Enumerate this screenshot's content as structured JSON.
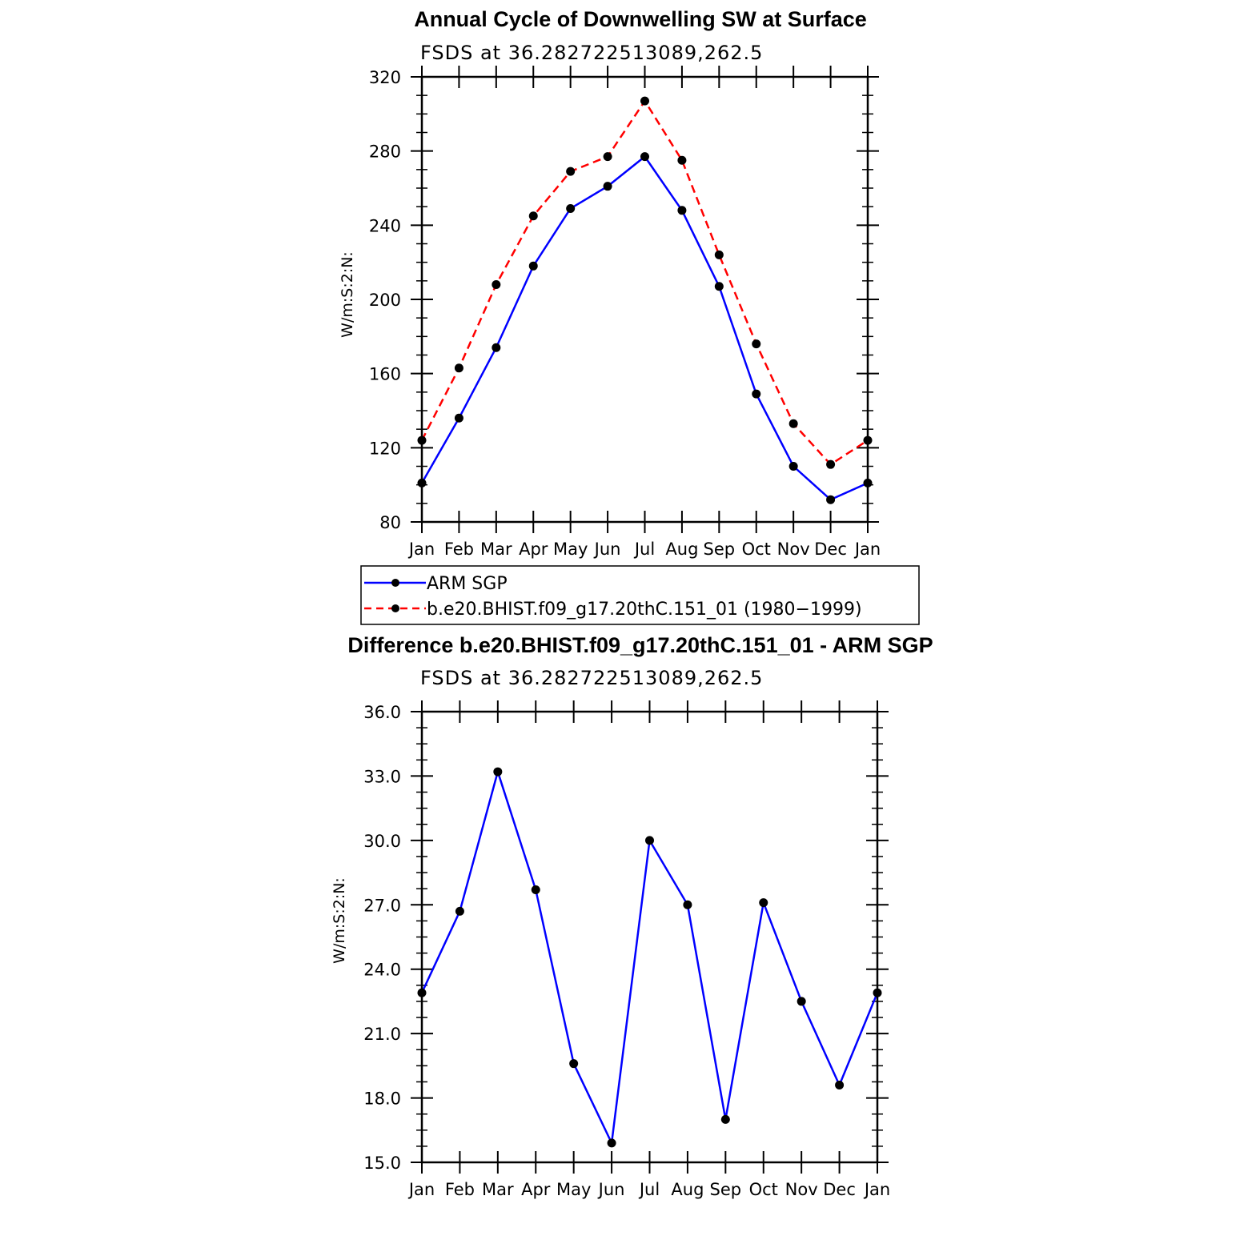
{
  "chart_data": [
    {
      "type": "line",
      "title": "Annual Cycle of Downwelling SW at Surface",
      "subtitle": "FSDS at 36.282722513089,262.5",
      "ylabel": "W/m:S:2:N:",
      "categories": [
        "Jan",
        "Feb",
        "Mar",
        "Apr",
        "May",
        "Jun",
        "Jul",
        "Aug",
        "Sep",
        "Oct",
        "Nov",
        "Dec",
        "Jan"
      ],
      "ylim": [
        80,
        320
      ],
      "yticks": [
        "80",
        "120",
        "160",
        "200",
        "240",
        "280",
        "320"
      ],
      "series": [
        {
          "name": "ARM SGP",
          "color": "#0000ff",
          "dash": "solid",
          "values": [
            101,
            136,
            174,
            218,
            249,
            261,
            277,
            248,
            207,
            149,
            110,
            92,
            101
          ]
        },
        {
          "name": "b.e20.BHIST.f09_g17.20thC.151_01 (1980−1999)",
          "color": "#ff0000",
          "dash": "dashed",
          "values": [
            124,
            163,
            208,
            245,
            269,
            277,
            307,
            275,
            224,
            176,
            133,
            111,
            124
          ]
        }
      ],
      "legend": "below"
    },
    {
      "type": "line",
      "title": "Difference b.e20.BHIST.f09_g17.20thC.151_01 - ARM SGP",
      "subtitle": "FSDS at 36.282722513089,262.5",
      "ylabel": "W/m:S:2:N:",
      "categories": [
        "Jan",
        "Feb",
        "Mar",
        "Apr",
        "May",
        "Jun",
        "Jul",
        "Aug",
        "Sep",
        "Oct",
        "Nov",
        "Dec",
        "Jan"
      ],
      "ylim": [
        15,
        36
      ],
      "yticks": [
        "15.0",
        "18.0",
        "21.0",
        "24.0",
        "27.0",
        "30.0",
        "33.0",
        "36.0"
      ],
      "series": [
        {
          "color": "#0000ff",
          "dash": "solid",
          "values": [
            22.9,
            26.7,
            33.2,
            27.7,
            19.6,
            15.9,
            30.0,
            27.0,
            17.0,
            27.1,
            22.5,
            18.6,
            22.9
          ]
        }
      ]
    }
  ]
}
